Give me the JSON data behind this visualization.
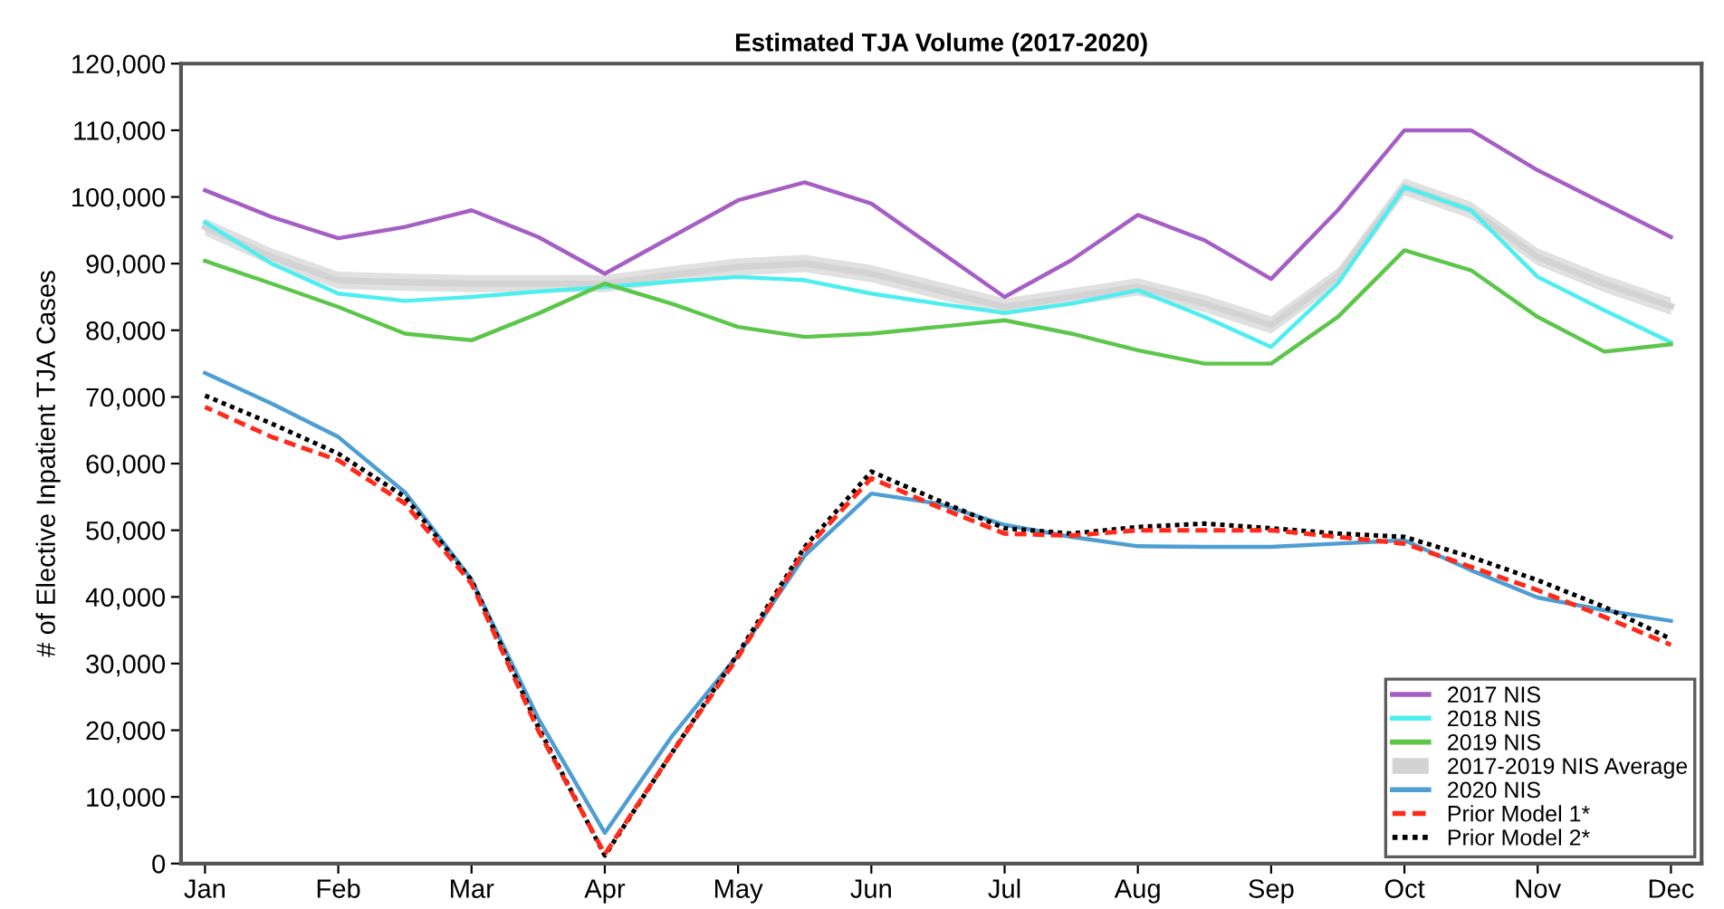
{
  "chart_data": {
    "type": "line",
    "title": "Estimated TJA Volume (2017-2020)",
    "ylabel": "# of Elective Inpatient TJA Cases",
    "categories": [
      "Jan",
      null,
      "Feb",
      null,
      "Mar",
      null,
      "Apr",
      null,
      "May",
      null,
      "Jun",
      null,
      "Jul",
      null,
      "Aug",
      null,
      "Sep",
      null,
      "Oct",
      null,
      "Nov",
      null,
      "Dec"
    ],
    "ylim": [
      0,
      120000
    ],
    "yticks": [
      {
        "value": 0,
        "label": "0"
      },
      {
        "value": 10000,
        "label": "10,000"
      },
      {
        "value": 20000,
        "label": "20,000"
      },
      {
        "value": 30000,
        "label": "30,000"
      },
      {
        "value": 40000,
        "label": "40,000"
      },
      {
        "value": 50000,
        "label": "50,000"
      },
      {
        "value": 60000,
        "label": "60,000"
      },
      {
        "value": 70000,
        "label": "70,000"
      },
      {
        "value": 80000,
        "label": "80,000"
      },
      {
        "value": 90000,
        "label": "90,000"
      },
      {
        "value": 100000,
        "label": "100,000"
      },
      {
        "value": 110000,
        "label": "110,000"
      },
      {
        "value": 120000,
        "label": "120,000"
      }
    ],
    "grid": false,
    "legend": "bottom right",
    "marker": "none",
    "series": [
      {
        "name": "2017 NIS",
        "color": "#a55fc4",
        "line_style": "solid",
        "values": [
          101000,
          97000,
          93800,
          95500,
          98000,
          94000,
          88500,
          94000,
          99500,
          102200,
          99000,
          92000,
          85000,
          90500,
          97300,
          93500,
          87700,
          98000,
          110000,
          110000,
          104000,
          99000,
          94000
        ]
      },
      {
        "name": "2018 NIS",
        "color": "#4deef0",
        "line_style": "solid",
        "values": [
          96200,
          90000,
          85500,
          84400,
          85000,
          85800,
          86500,
          87300,
          88000,
          87500,
          85500,
          84000,
          82600,
          84000,
          86000,
          82000,
          77500,
          87000,
          101500,
          98000,
          88000,
          83000,
          78200
        ]
      },
      {
        "name": "2019 NIS",
        "color": "#5cc64b",
        "line_style": "solid",
        "values": [
          90400,
          87000,
          83500,
          79500,
          78500,
          82500,
          87000,
          84000,
          80500,
          79000,
          79500,
          80500,
          81500,
          79500,
          77000,
          75000,
          75000,
          82000,
          92000,
          89000,
          82000,
          76800,
          77900
        ]
      },
      {
        "name": "2017-2019 NIS Average",
        "color": "#d3d3d3",
        "line_style": "solid",
        "values": [
          95500,
          91000,
          87500,
          87200,
          87000,
          87000,
          87000,
          88300,
          89500,
          90000,
          88500,
          86000,
          83500,
          85000,
          86500,
          84000,
          80800,
          88000,
          101500,
          98000,
          91000,
          87000,
          83600
        ],
        "lower": [
          94200,
          89700,
          86200,
          85900,
          85700,
          85700,
          85700,
          87000,
          88200,
          88700,
          87200,
          84700,
          82200,
          83700,
          85200,
          82700,
          79500,
          86700,
          100200,
          96700,
          89700,
          85700,
          82300
        ],
        "upper": [
          96800,
          92300,
          88800,
          88500,
          88300,
          88300,
          88300,
          89600,
          90800,
          91300,
          89800,
          87300,
          84800,
          86300,
          87800,
          85300,
          82100,
          89300,
          102800,
          99300,
          92300,
          88300,
          84900
        ]
      },
      {
        "name": "2020 NIS",
        "color": "#4e9ed3",
        "line_style": "solid",
        "values": [
          73600,
          69000,
          64000,
          55700,
          42600,
          21800,
          4600,
          19000,
          31300,
          46200,
          55500,
          54000,
          50800,
          49000,
          47600,
          47500,
          47500,
          48000,
          48500,
          44000,
          39900,
          38000,
          36400
        ]
      },
      {
        "name": "Prior Model 1*",
        "color": "#ff2a1a",
        "line_style": "dashed",
        "values": [
          68500,
          64000,
          60500,
          54000,
          42000,
          20000,
          1400,
          16500,
          31000,
          47000,
          57800,
          53500,
          49500,
          49200,
          50000,
          50000,
          50000,
          49000,
          48000,
          44500,
          41000,
          37000,
          32800
        ]
      },
      {
        "name": "Prior Model 2*",
        "color": "#000000",
        "line_style": "dotted",
        "values": [
          70200,
          66000,
          61500,
          55000,
          42500,
          20500,
          1200,
          16500,
          31500,
          47500,
          58800,
          54500,
          50300,
          49500,
          50500,
          51000,
          50300,
          49500,
          49000,
          46000,
          42500,
          38500,
          33700
        ]
      }
    ]
  }
}
